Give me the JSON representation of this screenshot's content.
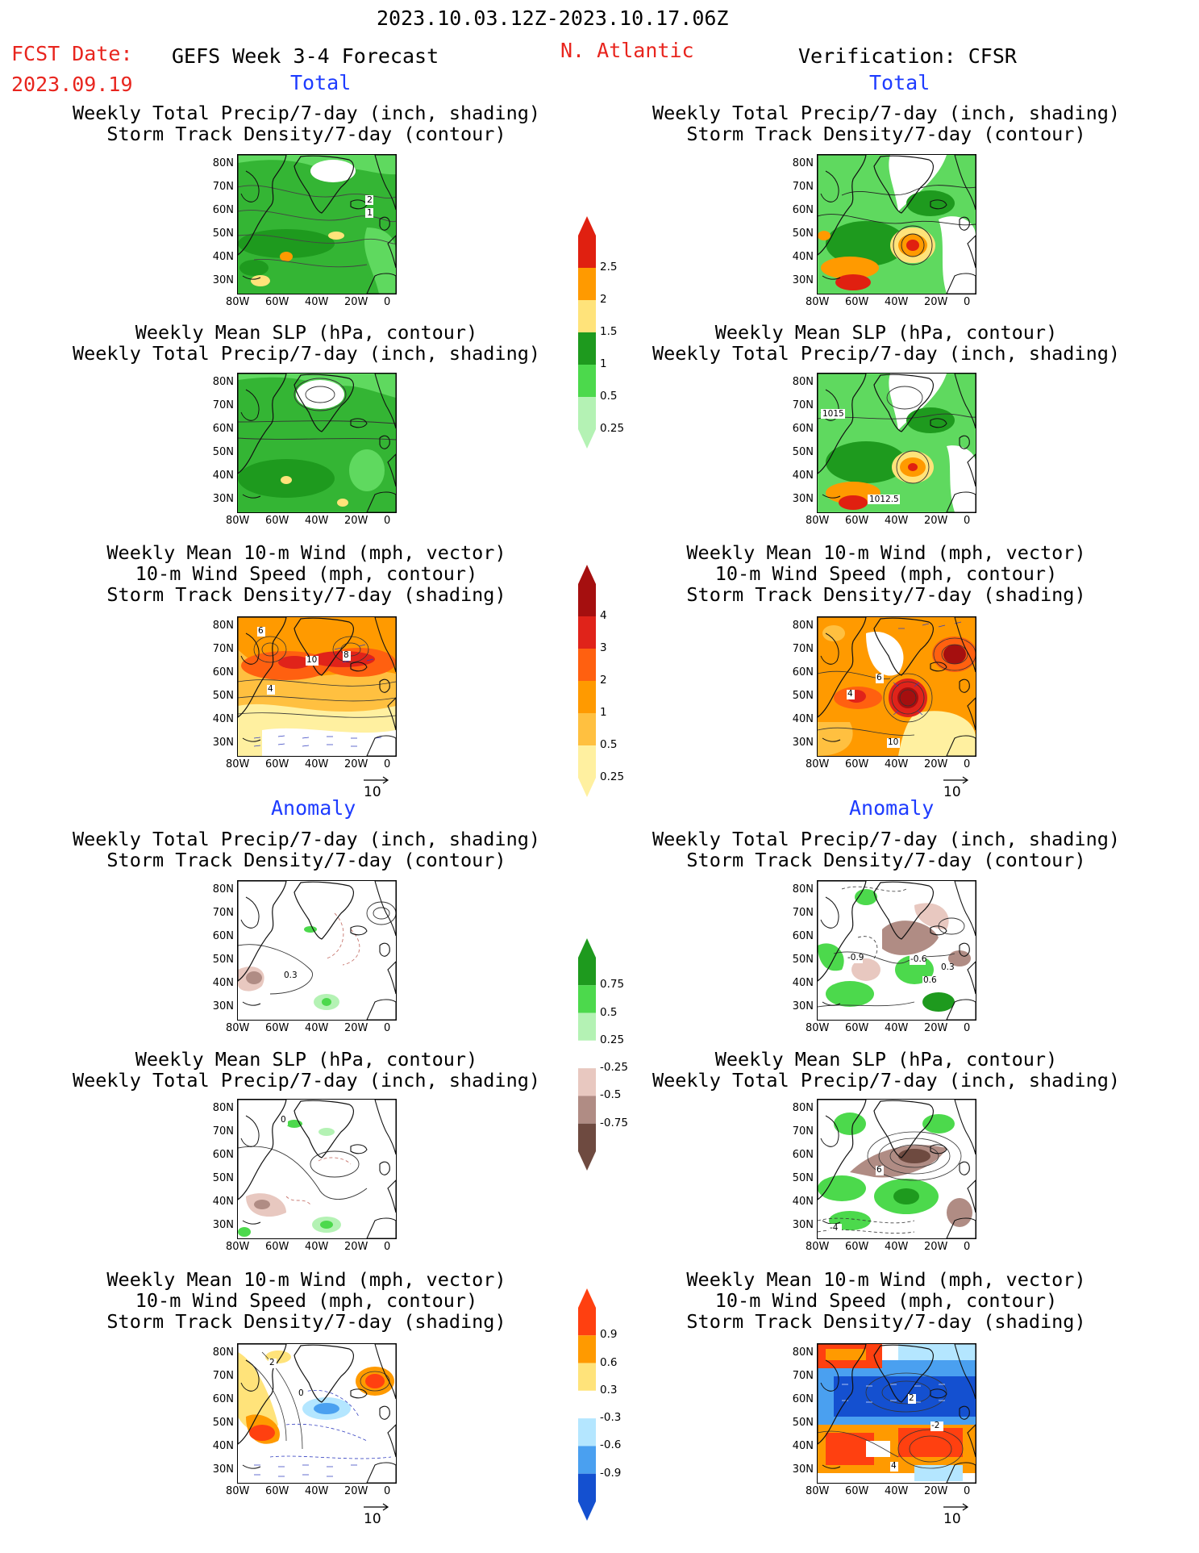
{
  "header": {
    "date_range": "2023.10.03.12Z-2023.10.17.06Z",
    "fcst_label": "FCST Date:",
    "fcst_date": "2023.09.19",
    "model_title": "GEFS Week 3-4 Forecast",
    "region": "N. Atlantic",
    "verification": "Verification: CFSR"
  },
  "sections": {
    "total": "Total",
    "anomaly": "Anomaly"
  },
  "titles": {
    "precip_track": [
      "Weekly Total Precip/7-day (inch, shading)",
      "Storm Track Density/7-day (contour)"
    ],
    "slp_precip": [
      "Weekly Mean SLP (hPa, contour)",
      "Weekly Total Precip/7-day (inch, shading)"
    ],
    "wind": [
      "Weekly Mean 10-m Wind (mph, vector)",
      "10-m Wind Speed (mph, contour)",
      "Storm Track Density/7-day (shading)"
    ]
  },
  "axes": {
    "lat": [
      "80N",
      "70N",
      "60N",
      "50N",
      "40N",
      "30N"
    ],
    "lon": [
      "80W",
      "60W",
      "40W",
      "20W",
      "0"
    ]
  },
  "vector_ref": "10",
  "contour_labels": {
    "fcst_track_total": [
      "2",
      "1"
    ],
    "obs_slp_total": [
      "1015",
      "1012.5"
    ],
    "fcst_wind_total": [
      "6",
      "10",
      "8",
      "4"
    ],
    "obs_wind_total": [
      "4",
      "6",
      "10"
    ],
    "fcst_track_anom": [
      "0.3"
    ],
    "obs_track_anom": [
      "-0.9",
      "-0.6",
      "0.3",
      "0.6"
    ],
    "fcst_slp_anom": [
      "0"
    ],
    "obs_slp_anom": [
      "6",
      "-4"
    ],
    "fcst_wind_anom": [
      "2",
      "0"
    ],
    "obs_wind_anom": [
      "2",
      "-2",
      "4"
    ]
  },
  "colorbars": {
    "precip_total": {
      "labels": [
        "2.5",
        "2",
        "1.5",
        "1",
        "0.5",
        "0.25"
      ],
      "colors": [
        "#e02010",
        "#ff9a00",
        "#ffe37a",
        "#1e9a1e",
        "#4cd94c",
        "#b4f2b4"
      ]
    },
    "track_total": {
      "labels": [
        "4",
        "3",
        "2",
        "1",
        "0.5",
        "0.25"
      ],
      "colors": [
        "#a50f0f",
        "#e0231a",
        "#ff6010",
        "#ff9a00",
        "#ffc040",
        "#fff0a0"
      ]
    },
    "precip_anom": {
      "labels": [
        "0.75",
        "0.5",
        "0.25",
        "-0.25",
        "-0.5",
        "-0.75"
      ],
      "colors": [
        "#1e9a1e",
        "#4cd94c",
        "#b4f2b4",
        "#ffffff",
        "#e8c8c0",
        "#b08c84",
        "#6e4a40"
      ]
    },
    "track_anom": {
      "labels": [
        "0.9",
        "0.6",
        "0.3",
        "-0.3",
        "-0.6",
        "-0.9"
      ],
      "colors": [
        "#ff4010",
        "#ff9a00",
        "#ffe37a",
        "#ffffff",
        "#b4e6ff",
        "#4aa0f0",
        "#1450d0"
      ]
    }
  }
}
